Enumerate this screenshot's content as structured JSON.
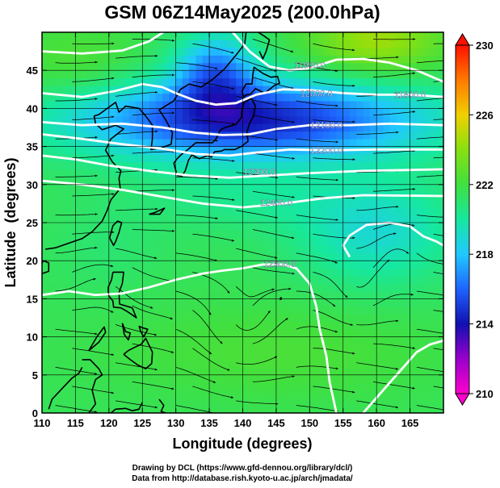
{
  "chart_data": {
    "type": "heatmap",
    "title": "GSM 06Z14May2025 (200.0hPa)",
    "xlabel": "Longitude (degrees)",
    "ylabel": "Latitude  (degrees)",
    "xlim": [
      110,
      170
    ],
    "ylim": [
      0,
      50
    ],
    "x_ticks": [
      "110",
      "115",
      "120",
      "125",
      "130",
      "135",
      "140",
      "145",
      "150",
      "155",
      "160",
      "165"
    ],
    "y_ticks": [
      "0",
      "5",
      "10",
      "15",
      "20",
      "25",
      "30",
      "35",
      "40",
      "45"
    ],
    "colorbar": {
      "min": 210,
      "max": 230,
      "ticks": [
        "210",
        "214",
        "218",
        "222",
        "226",
        "230"
      ]
    },
    "contour_labels": [
      "11900.0",
      "12000.0",
      "12100.0",
      "12200.0",
      "12300.0",
      "12400.0",
      "12500.0",
      "11800.0"
    ],
    "grid": true
  },
  "credits": {
    "line1": "Drawing by DCL (https://www.gfd-dennou.org/library/dcl/)",
    "line2": "Data from http://database.rish.kyoto-u.ac.jp/arch/jmadata/"
  }
}
